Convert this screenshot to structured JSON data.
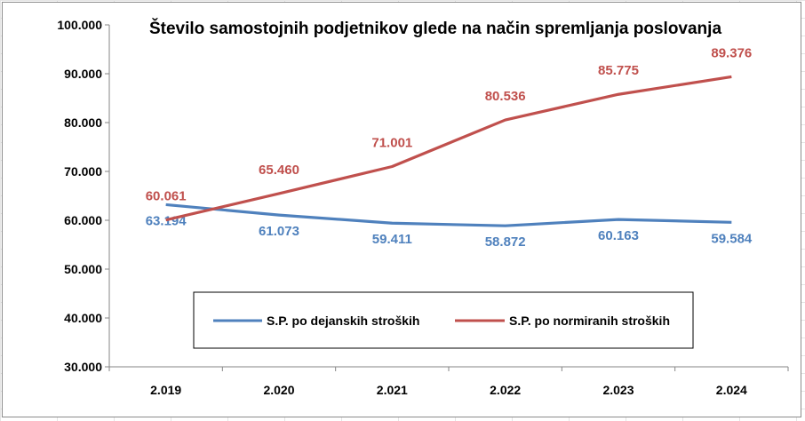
{
  "chart_data": {
    "type": "line",
    "title": "Število samostojnih podjetnikov glede na način spremljanja poslovanja",
    "categories": [
      "2.019",
      "2.020",
      "2.021",
      "2.022",
      "2.023",
      "2.024"
    ],
    "ylim": [
      30000,
      100000
    ],
    "yticks": [
      30000,
      40000,
      50000,
      60000,
      70000,
      80000,
      90000,
      100000
    ],
    "ytick_labels": [
      "30.000",
      "40.000",
      "50.000",
      "60.000",
      "70.000",
      "80.000",
      "90.000",
      "100.000"
    ],
    "grid": false,
    "legend_position": "bottom-center",
    "series": [
      {
        "name": "S.P. po dejanskih stroških",
        "color": "#4F81BD",
        "values": [
          63194,
          61073,
          59411,
          58872,
          60163,
          59584
        ],
        "labels": [
          "63.194",
          "61.073",
          "59.411",
          "58.872",
          "60.163",
          "59.584"
        ]
      },
      {
        "name": "S.P. po normiranih stroških",
        "color": "#C0504D",
        "values": [
          60061,
          65460,
          71001,
          80536,
          85775,
          89376
        ],
        "labels": [
          "60.061",
          "65.460",
          "71.001",
          "80.536",
          "85.775",
          "89.376"
        ]
      }
    ]
  }
}
